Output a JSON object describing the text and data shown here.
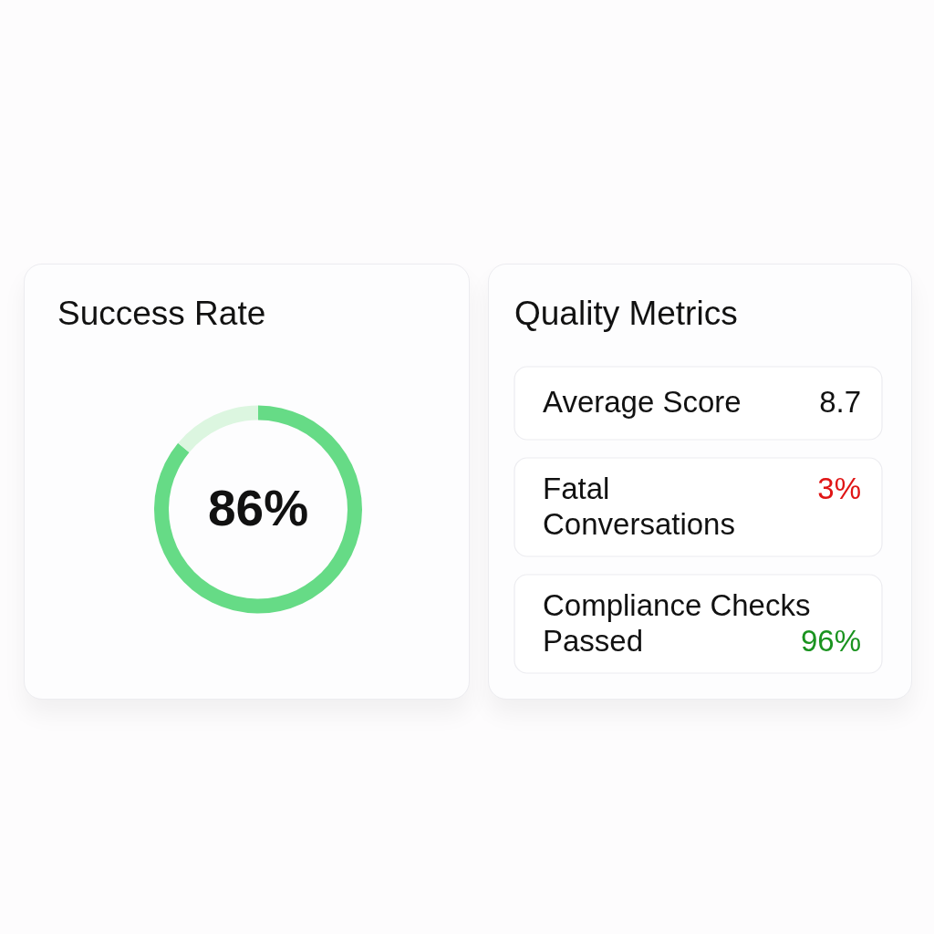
{
  "chart_data": [
    {
      "type": "donut",
      "title": "Success Rate",
      "categories": [
        null,
        null
      ],
      "values": [
        86,
        14
      ],
      "colors": [
        "#66db86",
        "#dcf6e0"
      ],
      "value_labels": [
        "86%",
        null
      ]
    },
    {
      "type": "other",
      "title": "Quality Metrics",
      "categories": [
        "Average Score",
        "Fatal Conversations",
        "Compliance Checks Passed"
      ],
      "value_labels": [
        "8.7",
        "3%",
        "96%"
      ],
      "colors": [
        "#111111",
        "#e01515",
        "#1a931f"
      ]
    }
  ]
}
